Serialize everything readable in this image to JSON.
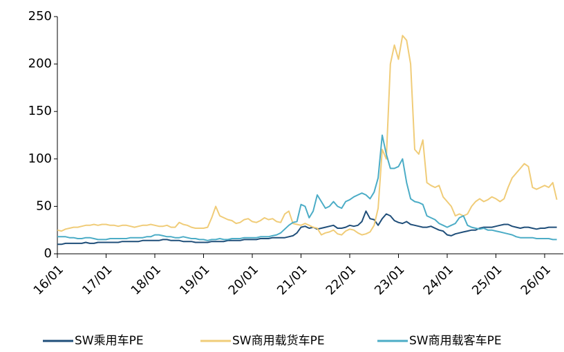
{
  "chart_data": {
    "type": "line",
    "x": [
      "16/01",
      null,
      null,
      null,
      null,
      null,
      null,
      null,
      null,
      null,
      null,
      null,
      "17/01",
      null,
      null,
      null,
      null,
      null,
      null,
      null,
      null,
      null,
      null,
      null,
      "18/01",
      null,
      null,
      null,
      null,
      null,
      null,
      null,
      null,
      null,
      null,
      null,
      "19/01",
      null,
      null,
      null,
      null,
      null,
      null,
      null,
      null,
      null,
      null,
      null,
      "20/01",
      null,
      null,
      null,
      null,
      null,
      null,
      null,
      null,
      null,
      null,
      null,
      "21/01",
      null,
      null,
      null,
      null,
      null,
      null,
      null,
      null,
      null,
      null,
      null,
      "22/01",
      null,
      null,
      null,
      null,
      null,
      null,
      null,
      null,
      null,
      null,
      null,
      "23/01",
      null,
      null,
      null,
      null,
      null,
      null,
      null,
      null,
      null,
      null,
      null,
      "24/01",
      null,
      null,
      null,
      null,
      null,
      null,
      null,
      null,
      null,
      null,
      null,
      "25/01",
      null,
      null,
      null,
      null,
      null,
      null,
      null,
      null,
      null,
      null,
      null,
      "26/01",
      null,
      null,
      null
    ],
    "series": [
      {
        "name": "SW乘用车PE",
        "color": "#1f4e79",
        "values": [
          10,
          10,
          11,
          11,
          11,
          11,
          11,
          12,
          11,
          11,
          12,
          12,
          12,
          12,
          12,
          12,
          13,
          13,
          13,
          13,
          13,
          14,
          14,
          14,
          14,
          14,
          15,
          15,
          14,
          14,
          14,
          13,
          13,
          13,
          12,
          12,
          12,
          12,
          13,
          13,
          13,
          13,
          14,
          14,
          14,
          14,
          15,
          15,
          15,
          15,
          16,
          16,
          16,
          17,
          17,
          17,
          17,
          18,
          19,
          22,
          28,
          29,
          27,
          28,
          26,
          27,
          28,
          29,
          30,
          27,
          27,
          28,
          30,
          29,
          30,
          34,
          45,
          37,
          36,
          30,
          37,
          42,
          40,
          35,
          33,
          32,
          34,
          31,
          30,
          29,
          28,
          28,
          29,
          27,
          25,
          24,
          20,
          19,
          21,
          22,
          23,
          24,
          25,
          25,
          27,
          28,
          28,
          28,
          29,
          30,
          31,
          31,
          29,
          28,
          27,
          28,
          28,
          27,
          26,
          27,
          27,
          28,
          28,
          28
        ]
      },
      {
        "name": "SW商用载货车PE",
        "color": "#f0cc78",
        "values": [
          25,
          24,
          26,
          27,
          28,
          28,
          29,
          30,
          30,
          31,
          30,
          31,
          31,
          30,
          30,
          29,
          30,
          30,
          29,
          28,
          29,
          30,
          30,
          31,
          30,
          29,
          29,
          30,
          28,
          28,
          33,
          31,
          30,
          28,
          27,
          27,
          27,
          28,
          38,
          50,
          40,
          38,
          36,
          35,
          32,
          33,
          36,
          37,
          34,
          33,
          35,
          38,
          36,
          37,
          34,
          33,
          42,
          45,
          32,
          31,
          30,
          32,
          30,
          28,
          27,
          20,
          22,
          23,
          25,
          21,
          20,
          24,
          26,
          25,
          22,
          20,
          21,
          23,
          30,
          48,
          110,
          100,
          200,
          220,
          205,
          230,
          225,
          200,
          110,
          105,
          120,
          75,
          72,
          70,
          72,
          60,
          55,
          50,
          40,
          42,
          40,
          42,
          50,
          55,
          58,
          55,
          57,
          60,
          58,
          55,
          58,
          70,
          80,
          85,
          90,
          95,
          92,
          70,
          68,
          70,
          72,
          70,
          75,
          57
        ]
      },
      {
        "name": "SW商用载客车PE",
        "color": "#4bacc6",
        "values": [
          18,
          18,
          18,
          17,
          17,
          16,
          16,
          17,
          17,
          16,
          15,
          15,
          15,
          16,
          16,
          16,
          16,
          16,
          17,
          17,
          17,
          17,
          18,
          18,
          20,
          20,
          19,
          18,
          18,
          17,
          17,
          18,
          17,
          16,
          16,
          15,
          15,
          14,
          15,
          15,
          16,
          15,
          15,
          16,
          16,
          16,
          17,
          17,
          17,
          17,
          18,
          18,
          18,
          19,
          20,
          22,
          26,
          30,
          33,
          34,
          52,
          50,
          38,
          45,
          62,
          55,
          48,
          50,
          55,
          50,
          48,
          55,
          57,
          60,
          62,
          64,
          62,
          58,
          65,
          80,
          125,
          105,
          90,
          90,
          92,
          100,
          75,
          58,
          55,
          54,
          52,
          40,
          38,
          36,
          32,
          30,
          28,
          30,
          32,
          38,
          40,
          30,
          28,
          27,
          26,
          27,
          25,
          25,
          24,
          23,
          22,
          21,
          20,
          18,
          17,
          17,
          17,
          17,
          16,
          16,
          16,
          16,
          15,
          15
        ]
      }
    ],
    "ylim": [
      0,
      250
    ],
    "yticks": [
      0,
      50,
      100,
      150,
      200,
      250
    ],
    "grid": false,
    "legend": "bottom"
  }
}
